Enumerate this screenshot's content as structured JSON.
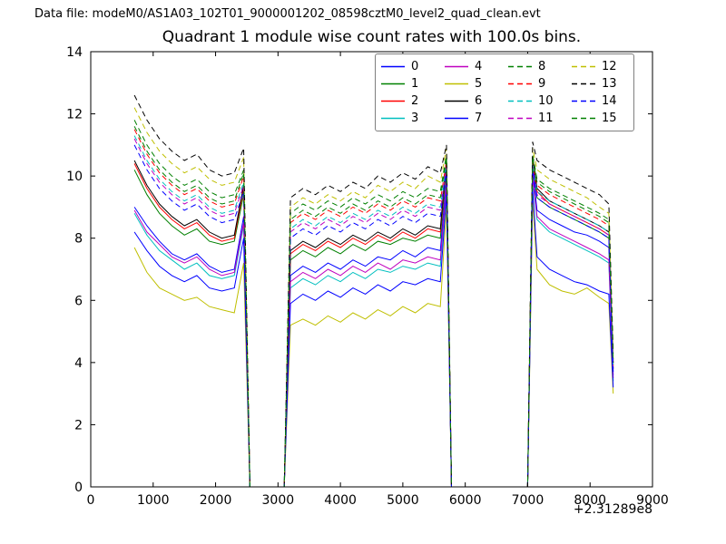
{
  "header": {
    "data_file": "Data file: modeM0/AS1A03_102T01_9000001202_08598cztM0_level2_quad_clean.evt"
  },
  "chart_data": {
    "type": "line",
    "title": "Quadrant 1 module wise count rates with 100.0s bins.",
    "xlabel": "",
    "ylabel": "",
    "xlim": [
      0,
      9000
    ],
    "ylim": [
      0,
      14
    ],
    "xticks": [
      0,
      1000,
      2000,
      3000,
      4000,
      5000,
      6000,
      7000,
      8000,
      9000
    ],
    "yticks": [
      0,
      2,
      4,
      6,
      8,
      10,
      12,
      14
    ],
    "x_offset_label": "+2.31289e8",
    "grid": false,
    "legend_position": "upper center-right",
    "legend_columns": 4,
    "x": [
      700,
      900,
      1100,
      1300,
      1500,
      1700,
      1900,
      2100,
      2300,
      2450,
      2550,
      3100,
      3200,
      3400,
      3600,
      3800,
      4000,
      4200,
      4400,
      4600,
      4800,
      5000,
      5200,
      5400,
      5600,
      5700,
      5780,
      7000,
      7080,
      7150,
      7350,
      7550,
      7750,
      7950,
      8150,
      8300,
      8370
    ],
    "series": [
      {
        "name": "0",
        "color": "#0000ff",
        "dash": "solid",
        "values": [
          9.0,
          8.4,
          7.9,
          7.5,
          7.3,
          7.5,
          7.1,
          6.9,
          7.0,
          8.7,
          0,
          0,
          6.8,
          7.1,
          6.9,
          7.2,
          7.0,
          7.3,
          7.1,
          7.4,
          7.3,
          7.6,
          7.4,
          7.7,
          7.6,
          10.0,
          0,
          0,
          10.2,
          8.9,
          8.6,
          8.4,
          8.2,
          8.1,
          7.9,
          7.7,
          3.6
        ]
      },
      {
        "name": "1",
        "color": "#008000",
        "dash": "solid",
        "values": [
          10.2,
          9.4,
          8.8,
          8.4,
          8.1,
          8.3,
          7.9,
          7.8,
          7.9,
          9.4,
          0,
          0,
          7.3,
          7.6,
          7.4,
          7.7,
          7.5,
          7.8,
          7.6,
          7.9,
          7.8,
          8.0,
          7.9,
          8.1,
          8.0,
          10.3,
          0,
          0,
          10.4,
          9.3,
          9.0,
          8.8,
          8.6,
          8.4,
          8.2,
          8.0,
          3.8
        ]
      },
      {
        "name": "2",
        "color": "#ff0000",
        "dash": "solid",
        "values": [
          10.4,
          9.6,
          9.0,
          8.6,
          8.3,
          8.5,
          8.1,
          7.9,
          8.0,
          9.6,
          0,
          0,
          7.5,
          7.8,
          7.6,
          7.9,
          7.7,
          8.0,
          7.8,
          8.1,
          7.9,
          8.2,
          8.0,
          8.3,
          8.2,
          10.5,
          0,
          0,
          10.5,
          9.5,
          9.1,
          8.9,
          8.7,
          8.5,
          8.3,
          8.1,
          3.9
        ]
      },
      {
        "name": "3",
        "color": "#00bfbf",
        "dash": "solid",
        "values": [
          8.8,
          8.1,
          7.6,
          7.3,
          7.0,
          7.2,
          6.8,
          6.7,
          6.8,
          8.4,
          0,
          0,
          6.4,
          6.7,
          6.5,
          6.8,
          6.6,
          6.9,
          6.7,
          7.0,
          6.9,
          7.1,
          7.0,
          7.2,
          7.1,
          9.7,
          0,
          0,
          9.9,
          8.6,
          8.2,
          8.0,
          7.8,
          7.6,
          7.4,
          7.2,
          3.4
        ]
      },
      {
        "name": "4",
        "color": "#bf00bf",
        "dash": "solid",
        "values": [
          8.9,
          8.2,
          7.8,
          7.4,
          7.2,
          7.4,
          7.0,
          6.8,
          6.9,
          8.5,
          0,
          0,
          6.6,
          6.9,
          6.7,
          7.0,
          6.8,
          7.1,
          6.9,
          7.2,
          7.0,
          7.3,
          7.2,
          7.4,
          7.3,
          9.8,
          0,
          0,
          10.0,
          8.7,
          8.3,
          8.1,
          7.9,
          7.7,
          7.5,
          7.3,
          3.5
        ]
      },
      {
        "name": "5",
        "color": "#bfbf00",
        "dash": "solid",
        "values": [
          7.7,
          6.9,
          6.4,
          6.2,
          6.0,
          6.1,
          5.8,
          5.7,
          5.6,
          7.2,
          0,
          0,
          5.2,
          5.4,
          5.2,
          5.5,
          5.3,
          5.6,
          5.4,
          5.7,
          5.5,
          5.8,
          5.6,
          5.9,
          5.8,
          9.0,
          0,
          0,
          9.2,
          7.0,
          6.5,
          6.3,
          6.2,
          6.4,
          6.1,
          5.9,
          3.0
        ]
      },
      {
        "name": "6",
        "color": "#000000",
        "dash": "solid",
        "values": [
          10.5,
          9.7,
          9.1,
          8.7,
          8.4,
          8.6,
          8.2,
          8.0,
          8.1,
          9.7,
          0,
          0,
          7.6,
          7.9,
          7.7,
          8.0,
          7.8,
          8.1,
          7.9,
          8.2,
          8.0,
          8.3,
          8.1,
          8.4,
          8.3,
          10.6,
          0,
          0,
          10.6,
          9.6,
          9.2,
          9.0,
          8.8,
          8.6,
          8.4,
          8.2,
          4.0
        ]
      },
      {
        "name": "7",
        "color": "#0000ff",
        "dash": "solid",
        "values": [
          8.2,
          7.6,
          7.1,
          6.8,
          6.6,
          6.8,
          6.4,
          6.3,
          6.4,
          8.0,
          0,
          0,
          5.9,
          6.2,
          6.0,
          6.3,
          6.1,
          6.4,
          6.2,
          6.5,
          6.3,
          6.6,
          6.5,
          6.7,
          6.6,
          9.4,
          0,
          0,
          9.6,
          7.4,
          7.0,
          6.8,
          6.6,
          6.5,
          6.3,
          6.2,
          3.2
        ]
      },
      {
        "name": "8",
        "color": "#008000",
        "dash": "dashed",
        "values": [
          11.8,
          11.0,
          10.4,
          10.0,
          9.7,
          9.9,
          9.5,
          9.3,
          9.4,
          10.2,
          0,
          0,
          8.8,
          9.1,
          8.9,
          9.2,
          9.0,
          9.3,
          9.1,
          9.4,
          9.2,
          9.5,
          9.3,
          9.6,
          9.5,
          10.7,
          0,
          0,
          10.7,
          9.9,
          9.6,
          9.4,
          9.2,
          9.0,
          8.8,
          8.6,
          4.1
        ]
      },
      {
        "name": "9",
        "color": "#ff0000",
        "dash": "dashed",
        "values": [
          11.5,
          10.7,
          10.1,
          9.7,
          9.4,
          9.6,
          9.2,
          9.0,
          9.1,
          10.0,
          0,
          0,
          8.5,
          8.8,
          8.6,
          8.9,
          8.7,
          9.0,
          8.8,
          9.1,
          8.9,
          9.2,
          9.0,
          9.3,
          9.2,
          10.5,
          0,
          0,
          10.6,
          9.7,
          9.4,
          9.2,
          9.0,
          8.8,
          8.6,
          8.4,
          4.0
        ]
      },
      {
        "name": "10",
        "color": "#00bfbf",
        "dash": "dashed",
        "values": [
          11.3,
          10.5,
          9.9,
          9.5,
          9.2,
          9.4,
          9.0,
          8.8,
          8.9,
          9.8,
          0,
          0,
          8.3,
          8.6,
          8.4,
          8.7,
          8.5,
          8.8,
          8.6,
          8.9,
          8.7,
          9.0,
          8.8,
          9.1,
          9.0,
          10.4,
          0,
          0,
          10.4,
          9.5,
          9.2,
          9.0,
          8.8,
          8.6,
          8.4,
          8.2,
          3.9
        ]
      },
      {
        "name": "11",
        "color": "#bf00bf",
        "dash": "dashed",
        "values": [
          11.2,
          10.4,
          9.8,
          9.4,
          9.1,
          9.3,
          8.9,
          8.7,
          8.8,
          9.7,
          0,
          0,
          8.2,
          8.5,
          8.3,
          8.6,
          8.4,
          8.7,
          8.5,
          8.8,
          8.6,
          8.9,
          8.7,
          9.0,
          8.9,
          10.3,
          0,
          0,
          10.3,
          9.4,
          9.1,
          8.9,
          8.7,
          8.5,
          8.3,
          8.1,
          3.8
        ]
      },
      {
        "name": "12",
        "color": "#bfbf00",
        "dash": "dashed",
        "values": [
          12.2,
          11.4,
          10.8,
          10.4,
          10.1,
          10.3,
          9.9,
          9.7,
          9.8,
          10.6,
          0,
          0,
          9.0,
          9.3,
          9.1,
          9.4,
          9.2,
          9.5,
          9.3,
          9.7,
          9.5,
          9.8,
          9.6,
          10.0,
          9.8,
          10.9,
          0,
          0,
          10.9,
          10.2,
          9.9,
          9.7,
          9.5,
          9.3,
          9.0,
          8.8,
          4.2
        ]
      },
      {
        "name": "13",
        "color": "#000000",
        "dash": "dashed",
        "values": [
          12.6,
          11.8,
          11.2,
          10.8,
          10.5,
          10.7,
          10.2,
          10.0,
          10.1,
          10.9,
          0,
          0,
          9.3,
          9.6,
          9.4,
          9.7,
          9.5,
          9.8,
          9.6,
          10.0,
          9.8,
          10.1,
          9.9,
          10.3,
          10.1,
          11.0,
          0,
          0,
          11.1,
          10.5,
          10.2,
          10.0,
          9.8,
          9.6,
          9.4,
          9.1,
          4.3
        ]
      },
      {
        "name": "14",
        "color": "#0000ff",
        "dash": "dashed",
        "values": [
          11.0,
          10.2,
          9.6,
          9.2,
          8.9,
          9.1,
          8.7,
          8.5,
          8.6,
          9.5,
          0,
          0,
          8.0,
          8.3,
          8.1,
          8.4,
          8.2,
          8.5,
          8.3,
          8.6,
          8.4,
          8.7,
          8.5,
          8.8,
          8.7,
          10.2,
          0,
          0,
          10.2,
          9.3,
          9.0,
          8.8,
          8.6,
          8.4,
          8.2,
          8.0,
          3.7
        ]
      },
      {
        "name": "15",
        "color": "#008000",
        "dash": "dashed",
        "values": [
          11.6,
          10.8,
          10.2,
          9.8,
          9.5,
          9.7,
          9.3,
          9.1,
          9.2,
          10.1,
          0,
          0,
          8.6,
          8.9,
          8.7,
          9.0,
          8.8,
          9.1,
          8.9,
          9.2,
          9.0,
          9.3,
          9.1,
          9.4,
          9.3,
          10.6,
          0,
          0,
          10.6,
          9.8,
          9.5,
          9.3,
          9.1,
          8.9,
          8.7,
          8.5,
          4.0
        ]
      }
    ]
  }
}
